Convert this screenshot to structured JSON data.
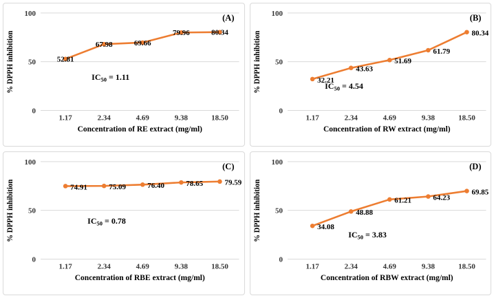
{
  "figure": {
    "background": "#ffffff",
    "panel_border_color": "#d9d9d9",
    "gridline_color": "#d9d9d9",
    "tick_color": "#333333",
    "text_color": "#000000"
  },
  "chart_data": [
    {
      "id": "A",
      "type": "line",
      "panel_label": "(A)",
      "xlabel": "Concentration of RE extract (mg/ml)",
      "ylabel": "% DPPH inhibition",
      "categories": [
        "1.17",
        "2.34",
        "4.69",
        "9.38",
        "18.50"
      ],
      "values": [
        52.81,
        67.98,
        69.66,
        79.96,
        80.34
      ],
      "data_labels": [
        "52.81",
        "67.98",
        "69.66",
        "79.96",
        "80.34"
      ],
      "data_label_position": "center",
      "annotation": {
        "prefix": "IC",
        "sub": "50",
        "rest": " = 1.11",
        "x": 128,
        "y": 112
      },
      "yticks": [
        "0",
        "50",
        "100"
      ],
      "ylim": [
        0,
        100
      ],
      "grid": true,
      "legend": "none",
      "line_color": "#ED7D31"
    },
    {
      "id": "B",
      "type": "line",
      "panel_label": "(B)",
      "xlabel": "Concentration of RW extract (mg/ml)",
      "ylabel": "% DPPH inhibition",
      "categories": [
        "1.17",
        "2.34",
        "4.69",
        "9.38",
        "18.50"
      ],
      "values": [
        32.21,
        43.63,
        51.69,
        61.79,
        80.34
      ],
      "data_labels": [
        "32.21",
        "43.63",
        "51.69",
        "61.79",
        "80.34"
      ],
      "data_label_position": "right",
      "annotation": {
        "prefix": "IC",
        "sub": "50",
        "rest": " = 4.54",
        "x": 108,
        "y": 125
      },
      "yticks": [
        "0",
        "50",
        "100"
      ],
      "ylim": [
        0,
        100
      ],
      "grid": true,
      "legend": "none",
      "line_color": "#ED7D31"
    },
    {
      "id": "C",
      "type": "line",
      "panel_label": "(C)",
      "xlabel": "Concentration of RBE extract (mg/ml)",
      "ylabel": "% DPPH inhibition",
      "categories": [
        "1.17",
        "2.34",
        "4.69",
        "9.38",
        "18.50"
      ],
      "values": [
        74.91,
        75.09,
        76.4,
        78.65,
        79.59
      ],
      "data_labels": [
        "74.91",
        "75.09",
        "76.40",
        "78.65",
        "79.59"
      ],
      "data_label_position": "right",
      "annotation": {
        "prefix": "IC",
        "sub": "50",
        "rest": " = 0.78",
        "x": 122,
        "y": 105
      },
      "yticks": [
        "0",
        "50",
        "100"
      ],
      "ylim": [
        0,
        100
      ],
      "grid": true,
      "legend": "none",
      "line_color": "#ED7D31"
    },
    {
      "id": "D",
      "type": "line",
      "panel_label": "(D)",
      "xlabel": "Concentration of RBW extract (mg/ml)",
      "ylabel": "% DPPH inhibition",
      "categories": [
        "1.17",
        "2.34",
        "4.69",
        "9.38",
        "18.50"
      ],
      "values": [
        34.08,
        48.88,
        61.21,
        64.23,
        69.85
      ],
      "data_labels": [
        "34.08",
        "48.88",
        "61.21",
        "64.23",
        "69.85"
      ],
      "data_label_position": "right",
      "annotation": {
        "prefix": "IC",
        "sub": "50",
        "rest": " = 3.83",
        "x": 142,
        "y": 125
      },
      "yticks": [
        "0",
        "50",
        "100"
      ],
      "ylim": [
        0,
        100
      ],
      "grid": true,
      "legend": "none",
      "line_color": "#ED7D31"
    }
  ]
}
